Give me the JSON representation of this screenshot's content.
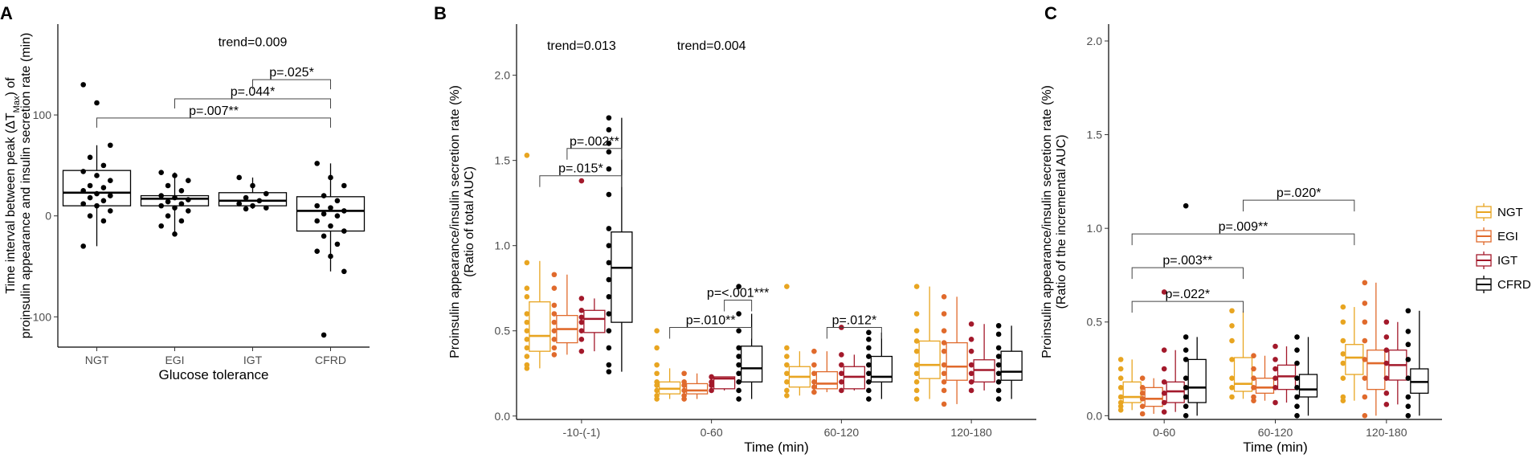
{
  "colors": {
    "NGT": "#E8A521",
    "EGI": "#E06A2C",
    "IGT": "#A3192B",
    "CFRD": "#000000"
  },
  "legend": {
    "items": [
      "NGT",
      "EGI",
      "IGT",
      "CFRD"
    ]
  },
  "chart_data": [
    {
      "panel": "A",
      "type": "box",
      "title": "",
      "xlabel": "Glucose tolerance",
      "ylabel_line1": "Time interval between peak (ΔT",
      "ylabel_sub": "Max",
      "ylabel_line1_end": ") of",
      "ylabel_line2": "proinsulin appearance and insulin secretion rate (min)",
      "ylim": [
        -130,
        190
      ],
      "yticks": [
        {
          "v": -100,
          "t": "-100"
        },
        {
          "v": 0,
          "t": "0"
        },
        {
          "v": 100,
          "t": "100"
        }
      ],
      "categories": [
        "NGT",
        "EGI",
        "IGT",
        "CFRD"
      ],
      "boxes": [
        {
          "cat": "NGT",
          "q1": 10,
          "med": 23,
          "q3": 45,
          "wlo": -30,
          "whi": 70,
          "points": [
            130,
            112,
            70,
            58,
            50,
            44,
            40,
            35,
            30,
            28,
            25,
            22,
            20,
            18,
            15,
            12,
            10,
            5,
            0,
            -5,
            -30
          ]
        },
        {
          "cat": "EGI",
          "q1": 10,
          "med": 17,
          "q3": 20,
          "wlo": -18,
          "whi": 43,
          "points": [
            43,
            40,
            35,
            30,
            25,
            20,
            18,
            16,
            14,
            12,
            10,
            8,
            5,
            0,
            -5,
            -10,
            -18
          ]
        },
        {
          "cat": "IGT",
          "q1": 10,
          "med": 15,
          "q3": 23,
          "wlo": 7,
          "whi": 38,
          "points": [
            38,
            30,
            22,
            18,
            15,
            12,
            10,
            8,
            7
          ]
        },
        {
          "cat": "CFRD",
          "q1": -15,
          "med": 5,
          "q3": 19,
          "wlo": -55,
          "whi": 52,
          "points": [
            52,
            38,
            30,
            20,
            15,
            10,
            8,
            5,
            2,
            0,
            -5,
            -10,
            -15,
            -20,
            -28,
            -35,
            -40,
            -55,
            -118
          ]
        }
      ],
      "annotations": [
        {
          "t": "trend=0.009",
          "x": 2.5,
          "y": 168
        }
      ],
      "brackets": [
        {
          "from": 0,
          "to": 3,
          "y": 97,
          "label": "p=.007**"
        },
        {
          "from": 1,
          "to": 3,
          "y": 116,
          "label": "p=.044*"
        },
        {
          "from": 2,
          "to": 3,
          "y": 135,
          "label": "p=.025*"
        }
      ]
    },
    {
      "panel": "B",
      "type": "grouped_box",
      "xlabel": "Time (min)",
      "ylabel_line1": "Proinsulin appearance/insulin secretion rate (%)",
      "ylabel_line2": "(Ratio of total AUC)",
      "ylim": [
        -0.02,
        2.3
      ],
      "yticks": [
        {
          "v": 0,
          "t": "0.0"
        },
        {
          "v": 0.5,
          "t": "0.5"
        },
        {
          "v": 1,
          "t": "1.0"
        },
        {
          "v": 1.5,
          "t": "1.5"
        },
        {
          "v": 2,
          "t": "2.0"
        }
      ],
      "categories": [
        "-10-(-1)",
        "0-60",
        "60-120",
        "120-180"
      ],
      "series": [
        "NGT",
        "EGI",
        "IGT",
        "CFRD"
      ],
      "boxes": [
        [
          {
            "q1": 0.38,
            "med": 0.47,
            "q3": 0.67,
            "wlo": 0.28,
            "whi": 0.91,
            "points": [
              1.53,
              0.9,
              0.75,
              0.7,
              0.6,
              0.55,
              0.5,
              0.45,
              0.4,
              0.35,
              0.3,
              0.28
            ]
          },
          {
            "q1": 0.43,
            "med": 0.51,
            "q3": 0.59,
            "wlo": 0.36,
            "whi": 0.83,
            "points": [
              0.83,
              0.75,
              0.65,
              0.6,
              0.55,
              0.5,
              0.45,
              0.4,
              0.36
            ]
          },
          {
            "q1": 0.49,
            "med": 0.57,
            "q3": 0.62,
            "wlo": 0.38,
            "whi": 0.69,
            "points": [
              1.38,
              0.69,
              0.62,
              0.58,
              0.55,
              0.5,
              0.45,
              0.38
            ]
          },
          {
            "q1": 0.55,
            "med": 0.87,
            "q3": 1.08,
            "wlo": 0.26,
            "whi": 1.75,
            "points": [
              1.75,
              1.68,
              1.6,
              1.55,
              1.45,
              1.3,
              1.1,
              1.0,
              0.9,
              0.8,
              0.7,
              0.6,
              0.5,
              0.4,
              0.3,
              0.26
            ]
          }
        ],
        [
          {
            "q1": 0.13,
            "med": 0.16,
            "q3": 0.2,
            "wlo": 0.1,
            "whi": 0.28,
            "points": [
              0.5,
              0.4,
              0.3,
              0.25,
              0.2,
              0.18,
              0.15,
              0.12,
              0.1
            ]
          },
          {
            "q1": 0.13,
            "med": 0.15,
            "q3": 0.19,
            "wlo": 0.1,
            "whi": 0.25,
            "points": [
              0.25,
              0.2,
              0.18,
              0.15,
              0.12,
              0.1
            ]
          },
          {
            "q1": 0.16,
            "med": 0.22,
            "q3": 0.23,
            "wlo": 0.15,
            "whi": 0.23,
            "points": [
              0.23,
              0.2,
              0.18,
              0.15
            ]
          },
          {
            "q1": 0.2,
            "med": 0.28,
            "q3": 0.41,
            "wlo": 0.1,
            "whi": 0.6,
            "points": [
              0.76,
              0.6,
              0.5,
              0.4,
              0.35,
              0.3,
              0.25,
              0.2,
              0.15,
              0.1
            ]
          }
        ],
        [
          {
            "q1": 0.17,
            "med": 0.23,
            "q3": 0.29,
            "wlo": 0.12,
            "whi": 0.38,
            "points": [
              0.76,
              0.4,
              0.35,
              0.3,
              0.25,
              0.2,
              0.15,
              0.12
            ]
          },
          {
            "q1": 0.16,
            "med": 0.19,
            "q3": 0.26,
            "wlo": 0.14,
            "whi": 0.38,
            "points": [
              0.38,
              0.3,
              0.25,
              0.2,
              0.17,
              0.14
            ]
          },
          {
            "q1": 0.16,
            "med": 0.23,
            "q3": 0.29,
            "wlo": 0.15,
            "whi": 0.36,
            "points": [
              0.52,
              0.36,
              0.3,
              0.25,
              0.2,
              0.15
            ]
          },
          {
            "q1": 0.2,
            "med": 0.23,
            "q3": 0.35,
            "wlo": 0.1,
            "whi": 0.49,
            "points": [
              0.49,
              0.45,
              0.4,
              0.35,
              0.3,
              0.25,
              0.2,
              0.15,
              0.1
            ]
          }
        ],
        [
          {
            "q1": 0.22,
            "med": 0.3,
            "q3": 0.44,
            "wlo": 0.1,
            "whi": 0.76,
            "points": [
              0.76,
              0.6,
              0.5,
              0.44,
              0.38,
              0.3,
              0.25,
              0.2,
              0.15,
              0.1
            ]
          },
          {
            "q1": 0.21,
            "med": 0.29,
            "q3": 0.43,
            "wlo": 0.07,
            "whi": 0.7,
            "points": [
              0.7,
              0.6,
              0.5,
              0.43,
              0.38,
              0.3,
              0.25,
              0.2,
              0.15,
              0.07
            ]
          },
          {
            "q1": 0.2,
            "med": 0.27,
            "q3": 0.33,
            "wlo": 0.15,
            "whi": 0.54,
            "points": [
              0.54,
              0.45,
              0.38,
              0.3,
              0.25,
              0.2,
              0.15
            ]
          },
          {
            "q1": 0.21,
            "med": 0.26,
            "q3": 0.38,
            "wlo": 0.1,
            "whi": 0.53,
            "points": [
              0.53,
              0.48,
              0.4,
              0.35,
              0.3,
              0.25,
              0.2,
              0.15,
              0.1
            ]
          }
        ]
      ],
      "annotations": [
        {
          "t": "trend=0.013",
          "cat": 0,
          "y": 2.15
        },
        {
          "t": "trend=0.004",
          "cat": 1,
          "y": 2.15
        }
      ],
      "brackets": [
        {
          "cat": 0,
          "from": 0,
          "to": 3,
          "y": 1.41,
          "label": "p=.015*"
        },
        {
          "cat": 0,
          "from": 1,
          "to": 3,
          "y": 1.57,
          "label": "p=.002**"
        },
        {
          "cat": 1,
          "from": 0,
          "to": 3,
          "y": 0.52,
          "label": "p=.010**"
        },
        {
          "cat": 1,
          "from": 2,
          "to": 3,
          "y": 0.68,
          "label": "p=<.001***"
        },
        {
          "cat": 2,
          "from": 1,
          "to": 3,
          "y": 0.52,
          "label": "p=.012*"
        }
      ]
    },
    {
      "panel": "C",
      "type": "grouped_box",
      "xlabel": "Time (min)",
      "ylabel_line1": "Proinsulin appearance/insulin secretion rate (%)",
      "ylabel_line2": "(Ratio of the incremental AUC)",
      "ylim": [
        -0.02,
        2.09
      ],
      "yticks": [
        {
          "v": 0,
          "t": "0.0"
        },
        {
          "v": 0.5,
          "t": "0.5"
        },
        {
          "v": 1,
          "t": "1.0"
        },
        {
          "v": 1.5,
          "t": "1.5"
        },
        {
          "v": 2,
          "t": "2.0"
        }
      ],
      "categories": [
        "0-60",
        "60-120",
        "120-180"
      ],
      "series": [
        "NGT",
        "EGI",
        "IGT",
        "CFRD"
      ],
      "boxes": [
        [
          {
            "q1": 0.07,
            "med": 0.1,
            "q3": 0.18,
            "wlo": 0.03,
            "whi": 0.3,
            "points": [
              0.3,
              0.25,
              0.2,
              0.15,
              0.1,
              0.07,
              0.05,
              0.03
            ]
          },
          {
            "q1": 0.05,
            "med": 0.09,
            "q3": 0.15,
            "wlo": 0.01,
            "whi": 0.2,
            "points": [
              0.2,
              0.15,
              0.12,
              0.09,
              0.05,
              0.01
            ]
          },
          {
            "q1": 0.07,
            "med": 0.13,
            "q3": 0.18,
            "wlo": 0.02,
            "whi": 0.35,
            "points": [
              0.66,
              0.35,
              0.25,
              0.18,
              0.12,
              0.07,
              0.02
            ]
          },
          {
            "q1": 0.07,
            "med": 0.15,
            "q3": 0.3,
            "wlo": 0.0,
            "whi": 0.42,
            "points": [
              1.12,
              0.42,
              0.35,
              0.3,
              0.2,
              0.15,
              0.1,
              0.05,
              0.0
            ]
          }
        ],
        [
          {
            "q1": 0.13,
            "med": 0.17,
            "q3": 0.31,
            "wlo": 0.09,
            "whi": 0.56,
            "points": [
              0.56,
              0.48,
              0.4,
              0.3,
              0.2,
              0.15,
              0.1
            ]
          },
          {
            "q1": 0.12,
            "med": 0.15,
            "q3": 0.2,
            "wlo": 0.08,
            "whi": 0.32,
            "points": [
              0.32,
              0.25,
              0.2,
              0.15,
              0.1,
              0.08
            ]
          },
          {
            "q1": 0.14,
            "med": 0.21,
            "q3": 0.27,
            "wlo": 0.07,
            "whi": 0.37,
            "points": [
              0.37,
              0.3,
              0.25,
              0.2,
              0.15,
              0.07
            ]
          },
          {
            "q1": 0.1,
            "med": 0.14,
            "q3": 0.22,
            "wlo": 0.0,
            "whi": 0.42,
            "points": [
              0.42,
              0.35,
              0.28,
              0.2,
              0.15,
              0.1,
              0.05,
              0.0
            ]
          }
        ],
        [
          {
            "q1": 0.22,
            "med": 0.31,
            "q3": 0.38,
            "wlo": 0.08,
            "whi": 0.58,
            "points": [
              0.58,
              0.5,
              0.4,
              0.33,
              0.28,
              0.2,
              0.1,
              0.08
            ]
          },
          {
            "q1": 0.14,
            "med": 0.28,
            "q3": 0.35,
            "wlo": 0.0,
            "whi": 0.71,
            "points": [
              0.71,
              0.6,
              0.5,
              0.4,
              0.3,
              0.2,
              0.1,
              0.0
            ]
          },
          {
            "q1": 0.19,
            "med": 0.27,
            "q3": 0.35,
            "wlo": 0.06,
            "whi": 0.5,
            "points": [
              0.5,
              0.42,
              0.35,
              0.28,
              0.2,
              0.12,
              0.06
            ]
          },
          {
            "q1": 0.12,
            "med": 0.18,
            "q3": 0.25,
            "wlo": 0.0,
            "whi": 0.56,
            "points": [
              0.56,
              0.45,
              0.38,
              0.3,
              0.2,
              0.1,
              0.05,
              0.0
            ]
          }
        ]
      ],
      "brackets": [
        {
          "from_cat": 0,
          "to_cat": 1,
          "y": 0.79,
          "label": "p=.003**"
        },
        {
          "from_cat": 0,
          "to_cat": 2,
          "y": 0.97,
          "label": "p=.009**"
        },
        {
          "from_cat": 1,
          "to_cat": 2,
          "y": 1.15,
          "label": "p=.020*"
        },
        {
          "from_cat": 0,
          "to_cat": 1,
          "y": 0.61,
          "label": "p=.022*"
        }
      ]
    }
  ]
}
